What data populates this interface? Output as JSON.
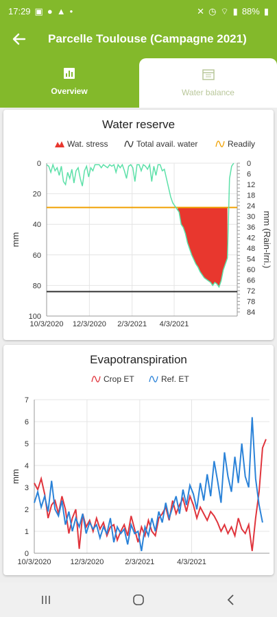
{
  "status_bar": {
    "time": "17:29",
    "battery": "88%"
  },
  "app_bar": {
    "title": "Parcelle Toulouse (Campagne 2021)",
    "back_icon": "arrow-left-icon"
  },
  "tabs": [
    {
      "label": "Overview",
      "icon": "bar-chart-icon",
      "selected": false
    },
    {
      "label": "Water balance",
      "icon": "calendar-grid-icon",
      "selected": true
    }
  ],
  "colors": {
    "primary": "#83b92b",
    "stress": "#e8372e",
    "avail_water": "#5ce0a8",
    "readily": "#f0a000",
    "crop_et": "#e0343c",
    "ref_et": "#2a82d8"
  },
  "chart_data": [
    {
      "type": "area",
      "title": "Water reserve",
      "ylabel": "mm",
      "y2label": "mm (Rain-Irri.)",
      "legend": [
        "Wat. stress",
        "Total avail. water",
        "Readily"
      ],
      "legend_position": "top",
      "x_ticks": [
        "10/3/2020",
        "12/3/2020",
        "2/3/2021",
        "4/3/2021"
      ],
      "y_ticks": [
        "0",
        "20",
        "40",
        "60",
        "80",
        "100"
      ],
      "y2_ticks": [
        "0",
        "6",
        "12",
        "18",
        "24",
        "30",
        "36",
        "42",
        "48",
        "54",
        "60",
        "66",
        "72",
        "78",
        "84"
      ],
      "ylim": [
        0,
        100
      ],
      "y_inverted": true,
      "readily_level": 29,
      "total_reserve_line": 84,
      "series": [
        {
          "name": "Total avail. water",
          "days": [
            0,
            3,
            6,
            9,
            12,
            15,
            18,
            21,
            24,
            27,
            30,
            33,
            36,
            39,
            42,
            45,
            48,
            51,
            54,
            57,
            60,
            63,
            66,
            69,
            72,
            75,
            78,
            81,
            84,
            87,
            90,
            93,
            96,
            99,
            102,
            105,
            108,
            111,
            114,
            117,
            120,
            123,
            126,
            129,
            132,
            135,
            138,
            141,
            144,
            147,
            150,
            153,
            156,
            159,
            162,
            165,
            168,
            171,
            174,
            177,
            180,
            183,
            186,
            189,
            192,
            195,
            198,
            201,
            204,
            207,
            210,
            213,
            216,
            219,
            222,
            225,
            228,
            231,
            234,
            237,
            240,
            243,
            246,
            249,
            252,
            255,
            258,
            261,
            264,
            267
          ],
          "values": [
            1,
            2,
            6,
            1,
            5,
            3,
            8,
            2,
            12,
            14,
            6,
            10,
            4,
            13,
            5,
            3,
            10,
            15,
            5,
            2,
            9,
            3,
            5,
            1,
            1,
            1,
            3,
            1,
            2,
            3,
            1,
            2,
            1,
            6,
            1,
            3,
            1,
            5,
            10,
            2,
            1,
            3,
            12,
            1,
            1,
            5,
            1,
            2,
            4,
            1,
            12,
            2,
            8,
            1,
            1,
            5,
            4,
            10,
            16,
            22,
            26,
            28,
            30,
            32,
            40,
            42,
            46,
            52,
            56,
            60,
            63,
            66,
            68,
            71,
            73,
            75,
            76,
            77,
            78,
            80,
            78,
            79,
            81,
            77,
            70,
            66,
            62,
            10,
            2,
            0
          ]
        }
      ],
      "stress_note": "filled where total avail. water exceeds readily level"
    },
    {
      "type": "line",
      "title": "Evapotranspiration",
      "ylabel": "mm",
      "legend": [
        "Crop ET",
        "Ref. ET"
      ],
      "legend_position": "top",
      "x_ticks": [
        "10/3/2020",
        "12/3/2020",
        "2/3/2021",
        "4/3/2021"
      ],
      "y_ticks": [
        "0",
        "1",
        "2",
        "3",
        "4",
        "5",
        "6",
        "7"
      ],
      "ylim": [
        0,
        7
      ],
      "series": [
        {
          "name": "Crop ET",
          "days": [
            0,
            4,
            8,
            12,
            16,
            20,
            24,
            28,
            32,
            36,
            40,
            44,
            48,
            52,
            56,
            60,
            64,
            68,
            72,
            76,
            80,
            84,
            88,
            92,
            96,
            100,
            104,
            108,
            112,
            116,
            120,
            124,
            128,
            132,
            136,
            140,
            144,
            148,
            152,
            156,
            160,
            164,
            168,
            172,
            176,
            180,
            184,
            188,
            192,
            196,
            200,
            204,
            208,
            212,
            216,
            220,
            224,
            228,
            232,
            236,
            240,
            244,
            248,
            252,
            256,
            260,
            264,
            268
          ],
          "values": [
            3.2,
            2.9,
            3.4,
            2.7,
            1.6,
            2.2,
            2.4,
            1.8,
            2.6,
            2.0,
            0.9,
            1.6,
            2.0,
            0.2,
            1.8,
            1.2,
            1.5,
            1.0,
            1.6,
            1.1,
            1.4,
            0.8,
            1.2,
            1.3,
            0.6,
            1.0,
            1.3,
            0.8,
            1.7,
            1.1,
            0.5,
            1.2,
            0.8,
            1.5,
            1.0,
            0.8,
            1.6,
            1.8,
            2.1,
            1.5,
            2.4,
            1.8,
            2.2,
            2.5,
            1.9,
            2.6,
            2.2,
            1.6,
            2.1,
            1.8,
            1.5,
            1.9,
            1.7,
            1.4,
            1.0,
            1.3,
            0.9,
            1.2,
            0.8,
            1.6,
            1.1,
            0.9,
            1.3,
            0.1,
            1.6,
            2.8,
            4.8,
            5.2
          ]
        },
        {
          "name": "Ref. ET",
          "days": [
            0,
            4,
            8,
            12,
            16,
            20,
            24,
            28,
            32,
            36,
            40,
            44,
            48,
            52,
            56,
            60,
            64,
            68,
            72,
            76,
            80,
            84,
            88,
            92,
            96,
            100,
            104,
            108,
            112,
            116,
            120,
            124,
            128,
            132,
            136,
            140,
            144,
            148,
            152,
            156,
            160,
            164,
            168,
            172,
            176,
            180,
            184,
            188,
            192,
            196,
            200,
            204,
            208,
            212,
            216,
            220,
            224,
            228,
            232,
            236,
            240,
            244,
            248,
            252,
            256,
            260,
            264
          ],
          "values": [
            2.3,
            2.8,
            2.1,
            2.6,
            1.9,
            3.3,
            2.0,
            1.7,
            2.4,
            1.3,
            1.9,
            1.0,
            1.6,
            1.2,
            1.8,
            0.9,
            1.4,
            1.1,
            1.3,
            0.7,
            1.2,
            0.9,
            1.6,
            0.5,
            1.2,
            0.9,
            1.1,
            0.4,
            1.3,
            0.9,
            1.0,
            0.1,
            1.2,
            0.8,
            1.6,
            1.0,
            1.9,
            1.4,
            2.3,
            1.6,
            2.1,
            2.6,
            1.8,
            2.9,
            2.2,
            3.1,
            2.7,
            2.0,
            3.2,
            2.4,
            3.6,
            2.6,
            4.2,
            3.3,
            2.3,
            4.6,
            3.5,
            2.8,
            4.4,
            3.2,
            5.0,
            3.5,
            3.0,
            6.2,
            3.4,
            2.2,
            1.4
          ]
        }
      ]
    }
  ]
}
